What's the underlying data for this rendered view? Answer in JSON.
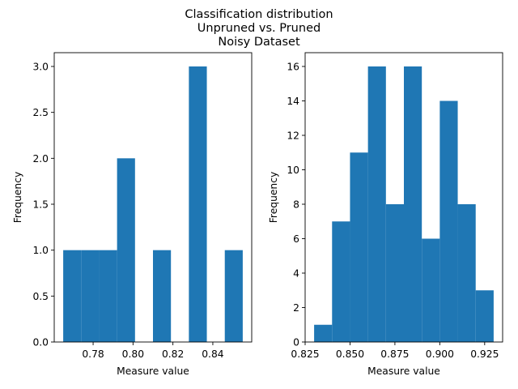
{
  "figure": {
    "title_lines": [
      "Classification distribution",
      "Unpruned vs. Pruned",
      "Noisy Dataset"
    ]
  },
  "colors": {
    "bar": "#1f77b4",
    "axes": "#000000",
    "background": "#ffffff"
  },
  "chart_data": [
    {
      "type": "bar",
      "subtype": "histogram",
      "xlabel": "Measure value",
      "ylabel": "Frequency",
      "xlim": [
        0.7605,
        0.8595
      ],
      "ylim": [
        0,
        3.15
      ],
      "xticks": [
        {
          "value": 0.78,
          "label": "0.78"
        },
        {
          "value": 0.8,
          "label": "0.80"
        },
        {
          "value": 0.82,
          "label": "0.82"
        },
        {
          "value": 0.84,
          "label": "0.84"
        }
      ],
      "yticks": [
        {
          "value": 0.0,
          "label": "0.0"
        },
        {
          "value": 0.5,
          "label": "0.5"
        },
        {
          "value": 1.0,
          "label": "1.0"
        },
        {
          "value": 1.5,
          "label": "1.5"
        },
        {
          "value": 2.0,
          "label": "2.0"
        },
        {
          "value": 2.5,
          "label": "2.5"
        },
        {
          "value": 3.0,
          "label": "3.0"
        }
      ],
      "bin_edges": [
        0.765,
        0.774,
        0.783,
        0.792,
        0.801,
        0.81,
        0.819,
        0.828,
        0.837,
        0.846,
        0.855
      ],
      "values": [
        1,
        1,
        1,
        2,
        0,
        1,
        0,
        3,
        0,
        1
      ]
    },
    {
      "type": "bar",
      "subtype": "histogram",
      "xlabel": "Measure value",
      "ylabel": "Frequency",
      "xlim": [
        0.825,
        0.935
      ],
      "ylim": [
        0,
        16.8
      ],
      "xticks": [
        {
          "value": 0.825,
          "label": "0.825"
        },
        {
          "value": 0.85,
          "label": "0.850"
        },
        {
          "value": 0.875,
          "label": "0.875"
        },
        {
          "value": 0.9,
          "label": "0.900"
        },
        {
          "value": 0.925,
          "label": "0.925"
        }
      ],
      "yticks": [
        {
          "value": 0,
          "label": "0"
        },
        {
          "value": 2,
          "label": "2"
        },
        {
          "value": 4,
          "label": "4"
        },
        {
          "value": 6,
          "label": "6"
        },
        {
          "value": 8,
          "label": "8"
        },
        {
          "value": 10,
          "label": "10"
        },
        {
          "value": 12,
          "label": "12"
        },
        {
          "value": 14,
          "label": "14"
        },
        {
          "value": 16,
          "label": "16"
        }
      ],
      "bin_edges": [
        0.83,
        0.84,
        0.85,
        0.86,
        0.87,
        0.88,
        0.89,
        0.9,
        0.91,
        0.92,
        0.93
      ],
      "values": [
        1,
        7,
        11,
        16,
        8,
        16,
        6,
        14,
        8,
        3
      ]
    }
  ]
}
